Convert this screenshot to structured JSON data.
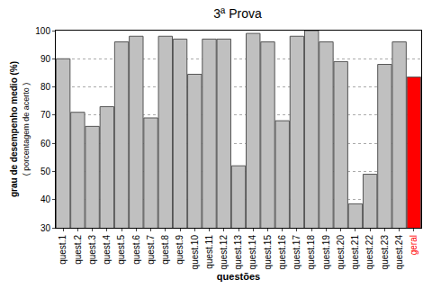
{
  "chart_data": {
    "type": "bar",
    "title": "3ª Prova",
    "xlabel": "questões",
    "ylabel": "grau de desempenho medio (%)",
    "ylabel_note": "( porcentagem de acerto )",
    "categories": [
      "quest.1",
      "quest.2",
      "quest.3",
      "quest.4",
      "quest.5",
      "quest.6",
      "quest.7",
      "quest.8",
      "quest.9",
      "quest.10",
      "quest.11",
      "quest.12",
      "quest.13",
      "quest.14",
      "quest.15",
      "quest.16",
      "quest.17",
      "quest.18",
      "quest.19",
      "quest.20",
      "quest.21",
      "quest.22",
      "quest.23",
      "quest.24",
      "geral"
    ],
    "values": [
      90,
      71,
      66,
      73,
      96,
      98,
      69,
      98,
      97,
      84.5,
      97,
      97,
      52,
      99,
      96,
      68,
      98,
      100,
      96,
      89,
      38.5,
      49,
      88,
      96,
      83.5
    ],
    "colors": [
      "#c0c0c0",
      "#c0c0c0",
      "#c0c0c0",
      "#c0c0c0",
      "#c0c0c0",
      "#c0c0c0",
      "#c0c0c0",
      "#c0c0c0",
      "#c0c0c0",
      "#c0c0c0",
      "#c0c0c0",
      "#c0c0c0",
      "#c0c0c0",
      "#c0c0c0",
      "#c0c0c0",
      "#c0c0c0",
      "#c0c0c0",
      "#c0c0c0",
      "#c0c0c0",
      "#c0c0c0",
      "#c0c0c0",
      "#c0c0c0",
      "#c0c0c0",
      "#c0c0c0",
      "#ff0000"
    ],
    "ylim": [
      30,
      100
    ],
    "yticks": [
      30,
      40,
      50,
      60,
      70,
      80,
      90,
      100
    ],
    "grid": true
  }
}
